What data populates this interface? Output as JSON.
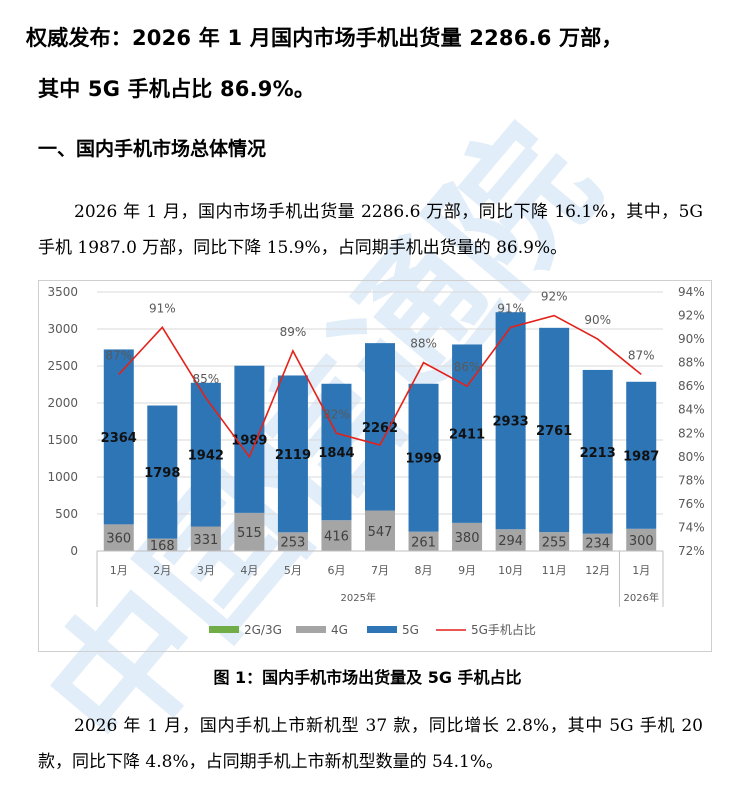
{
  "headline_line1": "权威发布：2026 年 1 月国内市场手机出货量 2286.6 万部，",
  "headline_line2": "其中 5G 手机占比 86.9%。",
  "section_title": "一、国内手机市场总体情况",
  "paragraph1": "2026 年 1 月，国内市场手机出货量 2286.6 万部，同比下降 16.1%，其中，5G 手机 1987.0 万部，同比下降 15.9%，占同期手机出货量的 86.9%。",
  "figure_caption": "图 1：国内手机市场出货量及 5G 手机占比",
  "paragraph2": "2026 年 1 月，国内手机上市新机型 37 款，同比增长 2.8%，其中 5G 手机 20 款，同比下降 4.8%，占同期手机上市新机型数量的 54.1%。",
  "watermark_text": "中国信通院",
  "colors": {
    "bar_5g": "#2e75b6",
    "bar_4g": "#a5a5a5",
    "bar_2g3g": "#70ad47",
    "line_share": "#e32119"
  },
  "chart_data": {
    "type": "bar",
    "stacked": true,
    "categories": [
      "1月",
      "2月",
      "3月",
      "4月",
      "5月",
      "6月",
      "7月",
      "8月",
      "9月",
      "10月",
      "11月",
      "12月",
      "1月"
    ],
    "category_groups": [
      {
        "label": "2025年",
        "span": 12
      },
      {
        "label": "2026年",
        "span": 1
      }
    ],
    "series": [
      {
        "name": "2G/3G",
        "type": "bar",
        "axis": "left",
        "values": [
          0,
          0,
          0,
          0,
          0,
          0,
          0,
          0,
          0,
          0,
          0,
          0,
          0
        ]
      },
      {
        "name": "4G",
        "type": "bar",
        "axis": "left",
        "values": [
          360,
          168,
          331,
          515,
          253,
          416,
          547,
          261,
          380,
          294,
          255,
          234,
          300
        ]
      },
      {
        "name": "5G",
        "type": "bar",
        "axis": "left",
        "values": [
          2364,
          1798,
          1942,
          1989,
          2119,
          1844,
          2262,
          1999,
          2411,
          2933,
          2761,
          2213,
          1987
        ]
      },
      {
        "name": "5G手机占比",
        "type": "line",
        "axis": "right",
        "values": [
          87,
          91,
          85,
          80,
          89,
          82,
          81,
          88,
          86,
          91,
          92,
          90,
          87
        ]
      }
    ],
    "left_axis": {
      "ylim": [
        0,
        3500
      ],
      "ticks": [
        "0",
        "500",
        "1000",
        "1500",
        "2000",
        "2500",
        "3000",
        "3500"
      ]
    },
    "right_axis": {
      "ylim": [
        72,
        94
      ],
      "ticks": [
        "72%",
        "74%",
        "76%",
        "78%",
        "80%",
        "82%",
        "84%",
        "86%",
        "88%",
        "90%",
        "92%",
        "94%"
      ]
    },
    "share_labels": [
      "87%",
      "91%",
      "85%",
      "",
      "89%",
      "82%",
      "",
      "88%",
      "86%",
      "91%",
      "92%",
      "90%",
      "87%"
    ],
    "grid": true,
    "legend_position": "bottom"
  }
}
